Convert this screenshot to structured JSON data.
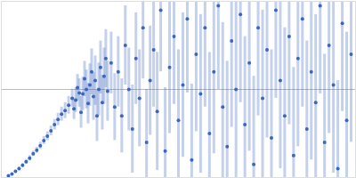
{
  "chart_data": {
    "type": "scatter",
    "color": "#3a66c0",
    "marker": "circle",
    "tick_labels": false,
    "grid": true,
    "xlim": [
      0,
      4
    ],
    "ylim": [
      0,
      2
    ],
    "xticks": [],
    "yticks": [
      1
    ],
    "x": [
      0.08,
      0.12,
      0.16,
      0.2,
      0.24,
      0.28,
      0.32,
      0.36,
      0.4,
      0.44,
      0.48,
      0.52,
      0.56,
      0.6,
      0.64,
      0.68,
      0.72,
      0.76,
      0.8,
      0.82,
      0.84,
      0.86,
      0.88,
      0.9,
      0.92,
      0.94,
      0.96,
      0.98,
      1.0,
      1.02,
      1.04,
      1.06,
      1.08,
      1.1,
      1.12,
      1.14,
      1.16,
      1.18,
      1.2,
      1.24,
      1.28,
      1.32,
      1.36,
      1.4,
      1.44,
      1.48,
      1.52,
      1.56,
      1.6,
      1.64,
      1.68,
      1.72,
      1.76,
      1.8,
      1.85,
      1.9,
      1.95,
      2.0,
      2.05,
      2.1,
      2.15,
      2.2,
      2.25,
      2.3,
      2.35,
      2.4,
      2.45,
      2.5,
      2.55,
      2.6,
      2.65,
      2.7,
      2.75,
      2.8,
      2.85,
      2.9,
      2.95,
      3.0,
      3.05,
      3.1,
      3.15,
      3.2,
      3.25,
      3.3,
      3.35,
      3.4,
      3.45,
      3.5,
      3.55,
      3.6,
      3.65,
      3.7,
      3.75,
      3.8,
      3.85,
      3.9,
      3.95
    ],
    "values": [
      0.02,
      0.04,
      0.07,
      0.1,
      0.14,
      0.18,
      0.22,
      0.27,
      0.31,
      0.36,
      0.42,
      0.47,
      0.53,
      0.6,
      0.66,
      0.72,
      0.76,
      0.82,
      0.9,
      0.78,
      0.88,
      1.02,
      0.96,
      0.74,
      0.95,
      1.12,
      1.0,
      0.84,
      1.05,
      1.2,
      0.92,
      1.1,
      0.7,
      1.0,
      1.25,
      0.85,
      1.15,
      1.35,
      0.98,
      1.3,
      0.8,
      1.2,
      0.7,
      1.5,
      1.0,
      0.55,
      1.35,
      0.9,
      1.7,
      0.4,
      1.1,
      1.45,
      0.75,
      1.9,
      0.3,
      1.25,
      1.6,
      0.65,
      1.05,
      1.8,
      0.2,
      1.4,
      0.95,
      1.7,
      0.5,
      1.2,
      1.95,
      0.8,
      0.35,
      1.55,
      1.0,
      1.85,
      0.6,
      1.3,
      0.15,
      1.7,
      0.9,
      1.45,
      0.45,
      1.9,
      1.1,
      0.7,
      1.6,
      0.25,
      1.35,
      1.8,
      0.55,
      1.2,
      0.85,
      1.95,
      0.4,
      1.5,
      1.05,
      0.1,
      1.75,
      0.65,
      1.4
    ],
    "errors": [
      0.01,
      0.01,
      0.015,
      0.02,
      0.02,
      0.025,
      0.03,
      0.03,
      0.035,
      0.04,
      0.045,
      0.05,
      0.055,
      0.06,
      0.07,
      0.08,
      0.09,
      0.1,
      0.1,
      0.12,
      0.14,
      0.15,
      0.16,
      0.18,
      0.19,
      0.2,
      0.22,
      0.23,
      0.24,
      0.26,
      0.27,
      0.28,
      0.29,
      0.3,
      0.3,
      0.31,
      0.32,
      0.33,
      0.34,
      0.35,
      0.38,
      0.4,
      0.42,
      0.45,
      0.47,
      0.5,
      0.52,
      0.55,
      0.58,
      0.6,
      0.62,
      0.65,
      0.67,
      0.7,
      0.72,
      0.75,
      0.77,
      0.8,
      0.82,
      0.84,
      0.86,
      0.88,
      0.9,
      0.9,
      0.92,
      0.93,
      0.95,
      0.96,
      0.97,
      0.98,
      1.0,
      1.0,
      1.0,
      1.0,
      1.0,
      1.0,
      1.0,
      1.0,
      1.0,
      1.0,
      1.0,
      1.0,
      1.0,
      1.0,
      1.0,
      1.0,
      1.0,
      1.0,
      1.0,
      1.0,
      1.0,
      1.0,
      1.0,
      1.0,
      1.0,
      1.0,
      1.0
    ]
  }
}
